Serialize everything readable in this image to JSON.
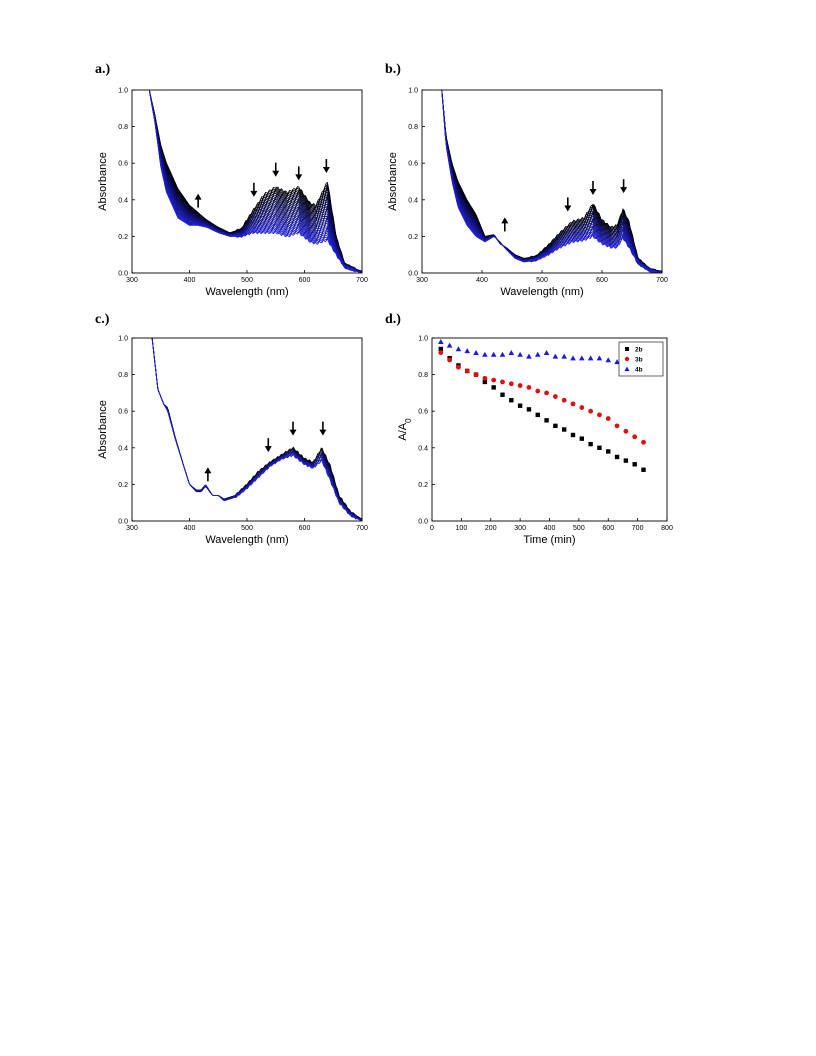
{
  "panels": [
    {
      "id": "a",
      "label": "a.)"
    },
    {
      "id": "b",
      "label": "b.)"
    },
    {
      "id": "c",
      "label": "c.)"
    },
    {
      "id": "d",
      "label": "d.)"
    }
  ],
  "chart_data": [
    {
      "panel": "a.)",
      "type": "line",
      "xlabel": "Wavelength (nm)",
      "ylabel": "Absorbance",
      "xlim": [
        300,
        700
      ],
      "ylim": [
        0.0,
        1.0
      ],
      "xticks": [
        "300",
        "400",
        "500",
        "600",
        "700"
      ],
      "yticks": [
        "0.0",
        "0.2",
        "0.4",
        "0.6",
        "0.8",
        "1.0"
      ],
      "line_count": 36,
      "color_start": "#000000",
      "color_end": "#1f1fd6",
      "first_spectrum": {
        "x": [
          330,
          340,
          350,
          360,
          380,
          400,
          415,
          430,
          450,
          470,
          490,
          510,
          530,
          550,
          570,
          590,
          610,
          620,
          640,
          655,
          670,
          690,
          700
        ],
        "y": [
          1.0,
          0.86,
          0.7,
          0.6,
          0.46,
          0.37,
          0.33,
          0.29,
          0.25,
          0.22,
          0.24,
          0.34,
          0.43,
          0.47,
          0.44,
          0.47,
          0.38,
          0.37,
          0.5,
          0.2,
          0.05,
          0.02,
          0.01
        ]
      },
      "last_spectrum": {
        "x": [
          330,
          340,
          350,
          360,
          380,
          400,
          415,
          430,
          450,
          470,
          490,
          510,
          530,
          550,
          570,
          590,
          610,
          620,
          640,
          655,
          670,
          690,
          700
        ],
        "y": [
          1.0,
          0.82,
          0.58,
          0.44,
          0.3,
          0.26,
          0.26,
          0.25,
          0.22,
          0.2,
          0.2,
          0.22,
          0.22,
          0.22,
          0.2,
          0.22,
          0.17,
          0.16,
          0.18,
          0.1,
          0.03,
          0.01,
          0.0
        ]
      },
      "arrows": [
        {
          "x": 415,
          "y": 0.39,
          "direction": "up"
        },
        {
          "x": 512,
          "y": 0.46,
          "direction": "down"
        },
        {
          "x": 550,
          "y": 0.57,
          "direction": "down"
        },
        {
          "x": 590,
          "y": 0.55,
          "direction": "down"
        },
        {
          "x": 638,
          "y": 0.59,
          "direction": "down"
        }
      ]
    },
    {
      "panel": "b.)",
      "type": "line",
      "xlabel": "Wavelength (nm)",
      "ylabel": "Absorbance",
      "xlim": [
        300,
        700
      ],
      "ylim": [
        0.0,
        1.0
      ],
      "xticks": [
        "300",
        "400",
        "500",
        "600",
        "700"
      ],
      "yticks": [
        "0.0",
        "0.2",
        "0.4",
        "0.6",
        "0.8",
        "1.0"
      ],
      "line_count": 30,
      "color_start": "#000000",
      "color_end": "#1f1fd6",
      "first_spectrum": {
        "x": [
          333,
          340,
          350,
          360,
          375,
          390,
          405,
          420,
          430,
          440,
          455,
          470,
          490,
          510,
          530,
          550,
          570,
          585,
          600,
          615,
          625,
          635,
          645,
          660,
          680,
          700
        ],
        "y": [
          1.0,
          0.75,
          0.6,
          0.5,
          0.4,
          0.32,
          0.2,
          0.21,
          0.16,
          0.14,
          0.1,
          0.08,
          0.09,
          0.15,
          0.22,
          0.28,
          0.3,
          0.38,
          0.29,
          0.25,
          0.26,
          0.35,
          0.28,
          0.08,
          0.02,
          0.01
        ]
      },
      "last_spectrum": {
        "x": [
          333,
          340,
          350,
          360,
          375,
          390,
          405,
          420,
          430,
          440,
          455,
          470,
          490,
          510,
          530,
          550,
          570,
          585,
          600,
          615,
          625,
          635,
          645,
          660,
          680,
          700
        ],
        "y": [
          1.0,
          0.7,
          0.5,
          0.36,
          0.26,
          0.2,
          0.17,
          0.2,
          0.17,
          0.13,
          0.08,
          0.06,
          0.07,
          0.1,
          0.14,
          0.17,
          0.18,
          0.2,
          0.16,
          0.14,
          0.14,
          0.19,
          0.14,
          0.05,
          0.01,
          0.0
        ]
      },
      "arrows": [
        {
          "x": 438,
          "y": 0.26,
          "direction": "up"
        },
        {
          "x": 543,
          "y": 0.38,
          "direction": "down"
        },
        {
          "x": 585,
          "y": 0.47,
          "direction": "down"
        },
        {
          "x": 636,
          "y": 0.48,
          "direction": "down"
        }
      ]
    },
    {
      "panel": "c.)",
      "type": "line",
      "xlabel": "Wavelength (nm)",
      "ylabel": "Absorbance",
      "xlim": [
        300,
        700
      ],
      "ylim": [
        0.0,
        1.0
      ],
      "xticks": [
        "300",
        "400",
        "500",
        "600",
        "700"
      ],
      "yticks": [
        "0.0",
        "0.2",
        "0.4",
        "0.6",
        "0.8",
        "1.0"
      ],
      "line_count": 14,
      "color_start": "#000000",
      "color_end": "#1f1fd6",
      "first_spectrum": {
        "x": [
          335,
          345,
          355,
          362,
          375,
          390,
          400,
          412,
          420,
          428,
          440,
          450,
          460,
          480,
          500,
          520,
          540,
          560,
          580,
          600,
          615,
          630,
          645,
          660,
          680,
          700
        ],
        "y": [
          1.0,
          0.72,
          0.64,
          0.62,
          0.46,
          0.3,
          0.2,
          0.16,
          0.16,
          0.19,
          0.14,
          0.14,
          0.12,
          0.14,
          0.2,
          0.27,
          0.32,
          0.36,
          0.4,
          0.34,
          0.32,
          0.4,
          0.3,
          0.14,
          0.05,
          0.01
        ]
      },
      "last_spectrum": {
        "x": [
          335,
          345,
          355,
          362,
          375,
          390,
          400,
          412,
          420,
          428,
          440,
          450,
          460,
          480,
          500,
          520,
          540,
          560,
          580,
          600,
          615,
          630,
          645,
          660,
          680,
          700
        ],
        "y": [
          1.0,
          0.72,
          0.64,
          0.6,
          0.45,
          0.3,
          0.2,
          0.17,
          0.17,
          0.2,
          0.14,
          0.14,
          0.11,
          0.13,
          0.18,
          0.24,
          0.3,
          0.34,
          0.36,
          0.31,
          0.29,
          0.33,
          0.22,
          0.1,
          0.03,
          0.0
        ]
      },
      "arrows": [
        {
          "x": 432,
          "y": 0.25,
          "direction": "up"
        },
        {
          "x": 537,
          "y": 0.42,
          "direction": "down"
        },
        {
          "x": 580,
          "y": 0.51,
          "direction": "down"
        },
        {
          "x": 632,
          "y": 0.51,
          "direction": "down"
        }
      ]
    },
    {
      "panel": "d.)",
      "type": "scatter",
      "xlabel": "Time (min)",
      "ylabel": "A/A0",
      "xlim": [
        0,
        800
      ],
      "ylim": [
        0.0,
        1.0
      ],
      "xticks": [
        "0",
        "100",
        "200",
        "300",
        "400",
        "500",
        "600",
        "700",
        "800"
      ],
      "yticks": [
        "0.0",
        "0.2",
        "0.4",
        "0.6",
        "0.8",
        "1.0"
      ],
      "legend_position": "top-right",
      "series": [
        {
          "name": "2b",
          "marker": "square",
          "color": "#000000",
          "x": [
            30,
            60,
            90,
            120,
            150,
            180,
            210,
            240,
            270,
            300,
            330,
            360,
            390,
            420,
            450,
            480,
            510,
            540,
            570,
            600,
            630,
            660,
            690,
            720
          ],
          "y": [
            0.94,
            0.89,
            0.85,
            0.82,
            0.8,
            0.76,
            0.73,
            0.69,
            0.66,
            0.63,
            0.61,
            0.58,
            0.55,
            0.52,
            0.5,
            0.47,
            0.45,
            0.42,
            0.4,
            0.38,
            0.35,
            0.33,
            0.31,
            0.28
          ]
        },
        {
          "name": "3b",
          "marker": "circle",
          "color": "#e01010",
          "x": [
            30,
            60,
            90,
            120,
            150,
            180,
            210,
            240,
            270,
            300,
            330,
            360,
            390,
            420,
            450,
            480,
            510,
            540,
            570,
            600,
            630,
            660,
            690,
            720
          ],
          "y": [
            0.92,
            0.88,
            0.84,
            0.82,
            0.8,
            0.78,
            0.77,
            0.76,
            0.75,
            0.74,
            0.73,
            0.71,
            0.7,
            0.68,
            0.66,
            0.64,
            0.62,
            0.6,
            0.58,
            0.56,
            0.52,
            0.49,
            0.46,
            0.43
          ]
        },
        {
          "name": "4b",
          "marker": "triangle",
          "color": "#1a1ae6",
          "x": [
            30,
            60,
            90,
            120,
            150,
            180,
            210,
            240,
            270,
            300,
            330,
            360,
            390,
            420,
            450,
            480,
            510,
            540,
            570,
            600,
            630,
            660,
            690,
            720
          ],
          "y": [
            0.98,
            0.96,
            0.94,
            0.93,
            0.92,
            0.91,
            0.91,
            0.91,
            0.92,
            0.91,
            0.9,
            0.91,
            0.92,
            0.9,
            0.9,
            0.89,
            0.89,
            0.89,
            0.89,
            0.88,
            0.87,
            0.88,
            0.86,
            0.86
          ]
        }
      ]
    }
  ]
}
